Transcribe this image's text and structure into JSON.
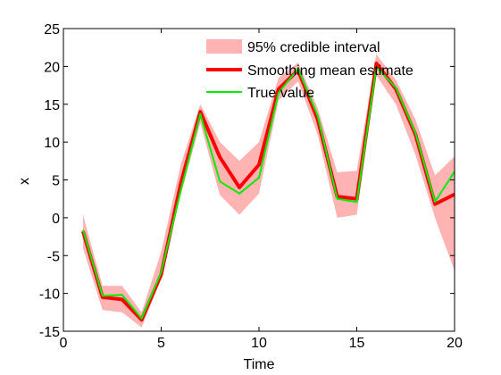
{
  "chart_data": {
    "type": "line",
    "title": "",
    "xlabel": "Time",
    "ylabel": "x",
    "xlim": [
      0,
      20
    ],
    "ylim": [
      -15,
      25
    ],
    "x_ticks": [
      0,
      5,
      10,
      15,
      20
    ],
    "y_ticks": [
      -15,
      -10,
      -5,
      0,
      5,
      10,
      15,
      20,
      25
    ],
    "grid": false,
    "legend_position": "top-center",
    "x": [
      1,
      2,
      3,
      4,
      5,
      6,
      7,
      8,
      9,
      10,
      11,
      12,
      13,
      14,
      15,
      16,
      17,
      18,
      19,
      20
    ],
    "interval": {
      "name": "95% credible interval",
      "color": "#ffb3b3",
      "lower": [
        -4,
        -12.2,
        -12.5,
        -14.5,
        -8,
        3,
        12.5,
        3,
        0.4,
        3.2,
        15.5,
        18,
        11,
        0,
        0.4,
        18.8,
        15,
        8.3,
        0,
        -7
      ],
      "upper": [
        0.4,
        -9,
        -9,
        -12.5,
        -4.5,
        7,
        15,
        10,
        7.5,
        10,
        18.5,
        20.5,
        14.5,
        6,
        6.2,
        21.6,
        18.2,
        13,
        5.6,
        8.1
      ]
    },
    "series": [
      {
        "name": "Smoothing mean estimate",
        "color": "#ff0000",
        "values": [
          -1.8,
          -10.5,
          -10.8,
          -13.5,
          -7.5,
          4.5,
          14,
          8,
          4,
          7,
          17,
          19.5,
          13,
          2.8,
          2.5,
          20.4,
          17,
          11,
          1.8,
          3.1
        ]
      },
      {
        "name": "True value",
        "color": "#00ee00",
        "values": [
          -1.6,
          -10.3,
          -10.2,
          -13.3,
          -7.2,
          3.6,
          13.7,
          4.8,
          3.2,
          5.3,
          16.5,
          19.7,
          13.5,
          2.5,
          2.1,
          19.9,
          17.2,
          11.2,
          2.1,
          6.1
        ]
      }
    ]
  }
}
